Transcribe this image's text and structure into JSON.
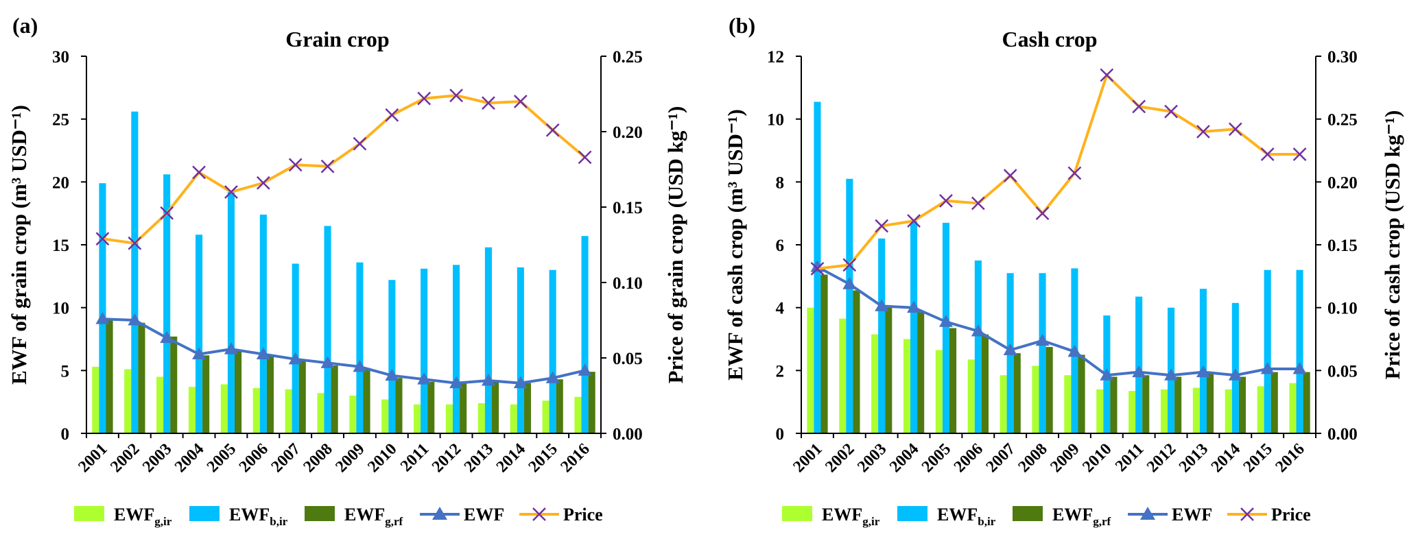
{
  "colors": {
    "ewf_g_ir": "#adff2f",
    "ewf_b_ir": "#00bfff",
    "ewf_g_rf": "#4e7a10",
    "ewf_line": "#4472c4",
    "price_line": "#ffb21c",
    "price_marker": "#7030a0",
    "axis": "#000000"
  },
  "chart_data": [
    {
      "panel_label": "(a)",
      "title": "Grain crop",
      "type": "bar+line",
      "categories": [
        "2001",
        "2002",
        "2003",
        "2004",
        "2005",
        "2006",
        "2007",
        "2008",
        "2009",
        "2010",
        "2011",
        "2012",
        "2013",
        "2014",
        "2015",
        "2016"
      ],
      "ylabel_left": "EWF of grain crop (m³ USD⁻¹)",
      "ylabel_right": "Price of grain crop (USD kg⁻¹)",
      "ylim_left": [
        0,
        30
      ],
      "yticks_left": [
        "0",
        "5",
        "10",
        "15",
        "20",
        "25",
        "30"
      ],
      "ylim_right": [
        0,
        0.25
      ],
      "yticks_right": [
        "0.00",
        "0.05",
        "0.10",
        "0.15",
        "0.20",
        "0.25"
      ],
      "bar_series": [
        {
          "name": "EWF_g,ir",
          "values": [
            5.3,
            5.1,
            4.5,
            3.7,
            3.9,
            3.6,
            3.5,
            3.2,
            3.0,
            2.7,
            2.3,
            2.3,
            2.4,
            2.3,
            2.6,
            2.9
          ]
        },
        {
          "name": "EWF_b,ir",
          "values": [
            19.9,
            25.6,
            20.6,
            15.8,
            19.2,
            17.4,
            13.5,
            16.5,
            13.6,
            12.2,
            13.1,
            13.4,
            14.8,
            13.2,
            13.0,
            15.7
          ]
        },
        {
          "name": "EWF_g,rf",
          "values": [
            9.1,
            8.8,
            7.7,
            6.2,
            6.6,
            6.2,
            5.8,
            5.4,
            5.2,
            4.4,
            4.1,
            4.0,
            4.1,
            4.0,
            4.3,
            4.9
          ]
        }
      ],
      "line_series": [
        {
          "name": "EWF",
          "axis": "left",
          "values": [
            9.1,
            9.0,
            7.6,
            6.3,
            6.7,
            6.3,
            5.9,
            5.6,
            5.3,
            4.6,
            4.3,
            4.0,
            4.2,
            4.0,
            4.4,
            5.0
          ]
        },
        {
          "name": "Price",
          "axis": "right",
          "values": [
            0.129,
            0.126,
            0.146,
            0.173,
            0.16,
            0.166,
            0.178,
            0.177,
            0.192,
            0.211,
            0.222,
            0.224,
            0.219,
            0.22,
            0.201,
            0.183
          ]
        }
      ]
    },
    {
      "panel_label": "(b)",
      "title": "Cash crop",
      "type": "bar+line",
      "categories": [
        "2001",
        "2002",
        "2003",
        "2004",
        "2005",
        "2006",
        "2007",
        "2008",
        "2009",
        "2010",
        "2011",
        "2012",
        "2013",
        "2014",
        "2015",
        "2016"
      ],
      "ylabel_left": "EWF of cash crop (m³ USD⁻¹)",
      "ylabel_right": "Price of cash crop (USD kg⁻¹)",
      "ylim_left": [
        0,
        12
      ],
      "yticks_left": [
        "0",
        "2",
        "4",
        "6",
        "8",
        "10",
        "12"
      ],
      "ylim_right": [
        0,
        0.3
      ],
      "yticks_right": [
        "0.00",
        "0.05",
        "0.10",
        "0.15",
        "0.20",
        "0.25",
        "0.30"
      ],
      "bar_series": [
        {
          "name": "EWF_g,ir",
          "values": [
            4.0,
            3.65,
            3.15,
            3.0,
            2.65,
            2.35,
            1.85,
            2.15,
            1.85,
            1.4,
            1.35,
            1.4,
            1.45,
            1.4,
            1.5,
            1.6
          ]
        },
        {
          "name": "EWF_b,ir",
          "values": [
            10.55,
            8.1,
            6.2,
            6.75,
            6.7,
            5.5,
            5.1,
            5.1,
            5.25,
            3.75,
            4.35,
            4.0,
            4.6,
            4.15,
            5.2,
            5.2
          ]
        },
        {
          "name": "EWF_g,rf",
          "values": [
            5.05,
            4.55,
            4.0,
            3.85,
            3.35,
            3.15,
            2.55,
            2.75,
            2.5,
            1.8,
            1.85,
            1.8,
            1.9,
            1.8,
            1.95,
            1.95
          ]
        }
      ],
      "line_series": [
        {
          "name": "EWF",
          "axis": "left",
          "values": [
            5.3,
            4.75,
            4.05,
            4.0,
            3.55,
            3.25,
            2.65,
            2.95,
            2.6,
            1.85,
            1.95,
            1.85,
            1.95,
            1.85,
            2.05,
            2.05
          ]
        },
        {
          "name": "Price",
          "axis": "right",
          "values": [
            0.131,
            0.134,
            0.165,
            0.169,
            0.185,
            0.183,
            0.205,
            0.175,
            0.207,
            0.285,
            0.26,
            0.256,
            0.24,
            0.242,
            0.222,
            0.222
          ]
        }
      ]
    }
  ],
  "legend": {
    "items": [
      {
        "base": "EWF",
        "sub": "g,ir"
      },
      {
        "base": "EWF",
        "sub": "b,ir"
      },
      {
        "base": "EWF",
        "sub": "g,rf"
      },
      {
        "base": "EWF",
        "sub": ""
      },
      {
        "base": "Price",
        "sub": ""
      }
    ]
  }
}
